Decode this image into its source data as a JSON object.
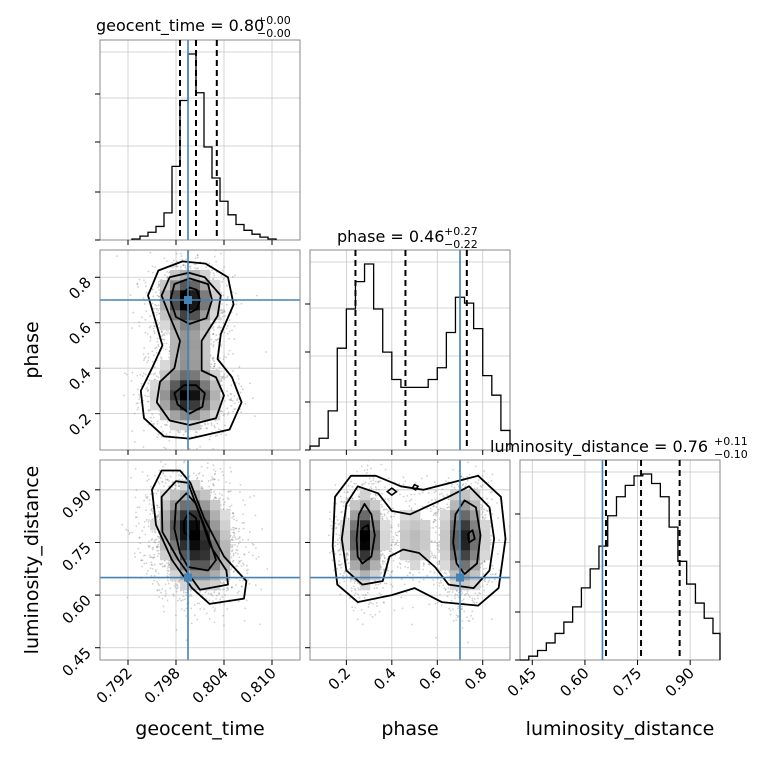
{
  "chart_data": {
    "type": "corner",
    "parameters": [
      "geocent_time",
      "phase",
      "luminosity_distance"
    ],
    "axis_labels": {
      "geocent_time": "geocent_time",
      "phase": "phase",
      "luminosity_distance": "luminosity_distance"
    },
    "titles": [
      {
        "param": "geocent_time",
        "label": "geocent_time",
        "value": "0.80",
        "plus": "+0.00",
        "minus": "−0.00"
      },
      {
        "param": "phase",
        "label": "phase",
        "value": "0.46",
        "plus": "+0.27",
        "minus": "−0.22"
      },
      {
        "param": "luminosity_distance",
        "label": "luminosity_distance",
        "value": "0.76",
        "plus": "+0.11",
        "minus": "−0.10"
      }
    ],
    "ranges": {
      "geocent_time": [
        0.7885,
        0.8135
      ],
      "phase": [
        0.04,
        0.92
      ],
      "luminosity_distance": [
        0.415,
        0.985
      ]
    },
    "ticks": {
      "geocent_time": [
        0.792,
        0.798,
        0.804,
        0.81
      ],
      "phase": [
        0.2,
        0.4,
        0.6,
        0.8
      ],
      "luminosity_distance": [
        0.45,
        0.6,
        0.75,
        0.9
      ]
    },
    "tick_labels": {
      "geocent_time": [
        "0.792",
        "0.798",
        "0.804",
        "0.810"
      ],
      "phase": [
        "0.2",
        "0.4",
        "0.6",
        "0.8"
      ],
      "luminosity_distance": [
        "0.45",
        "0.60",
        "0.75",
        "0.90"
      ]
    },
    "truths": {
      "geocent_time": 0.7995,
      "phase": 0.7,
      "luminosity_distance": 0.65
    },
    "quantiles": {
      "geocent_time": [
        0.7985,
        0.8005,
        0.8031
      ],
      "phase": [
        0.24,
        0.46,
        0.73
      ],
      "luminosity_distance": [
        0.66,
        0.76,
        0.87
      ]
    },
    "histograms": {
      "geocent_time": {
        "edges": [
          0.7925,
          0.7935,
          0.7945,
          0.7955,
          0.7965,
          0.7975,
          0.7985,
          0.7995,
          0.8005,
          0.8015,
          0.8025,
          0.8035,
          0.8045,
          0.8055,
          0.8065,
          0.8075,
          0.8085,
          0.8095,
          0.8105
        ],
        "counts": [
          0.005,
          0.02,
          0.04,
          0.07,
          0.14,
          0.38,
          0.72,
          0.96,
          0.76,
          0.48,
          0.32,
          0.2,
          0.13,
          0.08,
          0.05,
          0.03,
          0.015,
          0.005
        ]
      },
      "phase": {
        "edges": [
          0.04,
          0.08,
          0.12,
          0.16,
          0.2,
          0.24,
          0.28,
          0.32,
          0.36,
          0.4,
          0.44,
          0.48,
          0.52,
          0.56,
          0.6,
          0.64,
          0.68,
          0.72,
          0.76,
          0.8,
          0.84,
          0.88,
          0.92
        ],
        "counts": [
          0.02,
          0.06,
          0.2,
          0.52,
          0.72,
          0.86,
          0.95,
          0.72,
          0.5,
          0.36,
          0.32,
          0.32,
          0.32,
          0.36,
          0.42,
          0.6,
          0.78,
          0.75,
          0.62,
          0.38,
          0.28,
          0.1
        ]
      },
      "luminosity_distance": {
        "edges": [
          0.415,
          0.44,
          0.465,
          0.49,
          0.515,
          0.54,
          0.565,
          0.59,
          0.615,
          0.64,
          0.665,
          0.69,
          0.715,
          0.74,
          0.765,
          0.79,
          0.815,
          0.84,
          0.865,
          0.89,
          0.915,
          0.94,
          0.965,
          0.985
        ],
        "counts": [
          0.0,
          0.02,
          0.05,
          0.09,
          0.14,
          0.2,
          0.28,
          0.38,
          0.48,
          0.6,
          0.76,
          0.86,
          0.92,
          0.97,
          0.98,
          0.93,
          0.86,
          0.7,
          0.52,
          0.4,
          0.3,
          0.22,
          0.14
        ]
      }
    },
    "panels_2d": [
      {
        "x": "geocent_time",
        "y": "phase",
        "blobs": [
          {
            "cx": 0.7995,
            "cy": 0.7,
            "sx": 0.0017,
            "sy": 0.065,
            "w": 1.0
          },
          {
            "cx": 0.7995,
            "cy": 0.28,
            "sx": 0.002,
            "sy": 0.065,
            "w": 0.95
          },
          {
            "cx": 0.7995,
            "cy": 0.49,
            "sx": 0.0016,
            "sy": 0.09,
            "w": 0.35
          }
        ],
        "contours": [
          [
            [
              0.7998,
              0.645
            ],
            [
              0.8006,
              0.66
            ],
            [
              0.801,
              0.7
            ],
            [
              0.8006,
              0.745
            ],
            [
              0.7997,
              0.755
            ],
            [
              0.799,
              0.735
            ],
            [
              0.7987,
              0.7
            ],
            [
              0.799,
              0.665
            ]
          ],
          [
            [
              0.7997,
              0.595
            ],
            [
              0.8018,
              0.62
            ],
            [
              0.8025,
              0.7
            ],
            [
              0.802,
              0.77
            ],
            [
              0.7997,
              0.795
            ],
            [
              0.7978,
              0.77
            ],
            [
              0.7973,
              0.7
            ],
            [
              0.798,
              0.625
            ]
          ],
          [
            [
              0.7997,
              0.2
            ],
            [
              0.8013,
              0.23
            ],
            [
              0.8016,
              0.29
            ],
            [
              0.8005,
              0.325
            ],
            [
              0.799,
              0.325
            ],
            [
              0.7978,
              0.29
            ],
            [
              0.7982,
              0.24
            ]
          ],
          [
            [
              0.7997,
              0.15
            ],
            [
              0.803,
              0.18
            ],
            [
              0.804,
              0.28
            ],
            [
              0.803,
              0.36
            ],
            [
              0.8012,
              0.39
            ],
            [
              0.8012,
              0.52
            ],
            [
              0.8032,
              0.63
            ],
            [
              0.8036,
              0.72
            ],
            [
              0.8016,
              0.8
            ],
            [
              0.7996,
              0.82
            ],
            [
              0.7972,
              0.8
            ],
            [
              0.7962,
              0.72
            ],
            [
              0.7972,
              0.63
            ],
            [
              0.7985,
              0.52
            ],
            [
              0.7978,
              0.4
            ],
            [
              0.796,
              0.34
            ],
            [
              0.7956,
              0.25
            ],
            [
              0.7972,
              0.17
            ]
          ],
          [
            [
              0.7997,
              0.09
            ],
            [
              0.8047,
              0.13
            ],
            [
              0.8062,
              0.25
            ],
            [
              0.805,
              0.36
            ],
            [
              0.8032,
              0.44
            ],
            [
              0.8036,
              0.55
            ],
            [
              0.8052,
              0.68
            ],
            [
              0.8045,
              0.8
            ],
            [
              0.8017,
              0.86
            ],
            [
              0.7988,
              0.87
            ],
            [
              0.7958,
              0.83
            ],
            [
              0.7945,
              0.72
            ],
            [
              0.7955,
              0.6
            ],
            [
              0.7963,
              0.5
            ],
            [
              0.795,
              0.4
            ],
            [
              0.7936,
              0.3
            ],
            [
              0.794,
              0.18
            ],
            [
              0.7965,
              0.1
            ]
          ]
        ]
      },
      {
        "x": "geocent_time",
        "y": "luminosity_distance",
        "blobs": [
          {
            "cx": 0.7997,
            "cy": 0.8,
            "sx": 0.002,
            "sy": 0.055,
            "w": 1.0
          },
          {
            "cx": 0.8012,
            "cy": 0.71,
            "sx": 0.002,
            "sy": 0.05,
            "w": 0.7
          }
        ],
        "contours": [
          [
            [
              0.7997,
              0.765
            ],
            [
              0.8007,
              0.78
            ],
            [
              0.8005,
              0.82
            ],
            [
              0.7996,
              0.835
            ],
            [
              0.799,
              0.81
            ],
            [
              0.799,
              0.78
            ]
          ],
          [
            [
              0.7995,
              0.68
            ],
            [
              0.802,
              0.67
            ],
            [
              0.803,
              0.7
            ],
            [
              0.802,
              0.77
            ],
            [
              0.8005,
              0.86
            ],
            [
              0.7993,
              0.89
            ],
            [
              0.798,
              0.86
            ],
            [
              0.7978,
              0.79
            ],
            [
              0.7985,
              0.72
            ]
          ],
          [
            [
              0.801,
              0.615
            ],
            [
              0.8045,
              0.63
            ],
            [
              0.8043,
              0.67
            ],
            [
              0.8023,
              0.74
            ],
            [
              0.8008,
              0.84
            ],
            [
              0.7995,
              0.92
            ],
            [
              0.798,
              0.925
            ],
            [
              0.7962,
              0.88
            ],
            [
              0.7963,
              0.78
            ],
            [
              0.7983,
              0.7
            ]
          ],
          [
            [
              0.8022,
              0.575
            ],
            [
              0.8065,
              0.59
            ],
            [
              0.8068,
              0.64
            ],
            [
              0.804,
              0.71
            ],
            [
              0.8015,
              0.82
            ],
            [
              0.7998,
              0.92
            ],
            [
              0.7985,
              0.955
            ],
            [
              0.7962,
              0.955
            ],
            [
              0.795,
              0.9
            ],
            [
              0.7955,
              0.8
            ],
            [
              0.7975,
              0.7
            ],
            [
              0.8,
              0.62
            ]
          ]
        ]
      },
      {
        "x": "phase",
        "y": "luminosity_distance",
        "blobs": [
          {
            "cx": 0.28,
            "cy": 0.76,
            "sx": 0.04,
            "sy": 0.06,
            "w": 1.0
          },
          {
            "cx": 0.72,
            "cy": 0.76,
            "sx": 0.045,
            "sy": 0.07,
            "w": 0.85
          },
          {
            "cx": 0.5,
            "cy": 0.76,
            "sx": 0.06,
            "sy": 0.06,
            "w": 0.2
          }
        ],
        "contours": [
          [
            [
              0.275,
              0.75
            ],
            [
              0.3,
              0.77
            ],
            [
              0.295,
              0.8
            ],
            [
              0.27,
              0.79
            ]
          ],
          [
            [
              0.27,
              0.69
            ],
            [
              0.31,
              0.71
            ],
            [
              0.325,
              0.77
            ],
            [
              0.31,
              0.83
            ],
            [
              0.28,
              0.86
            ],
            [
              0.255,
              0.83
            ],
            [
              0.245,
              0.76
            ],
            [
              0.25,
              0.71
            ]
          ],
          [
            [
              0.74,
              0.75
            ],
            [
              0.765,
              0.76
            ],
            [
              0.755,
              0.785
            ],
            [
              0.735,
              0.775
            ]
          ],
          [
            [
              0.72,
              0.66
            ],
            [
              0.775,
              0.69
            ],
            [
              0.79,
              0.77
            ],
            [
              0.77,
              0.85
            ],
            [
              0.72,
              0.87
            ],
            [
              0.68,
              0.83
            ],
            [
              0.67,
              0.75
            ],
            [
              0.685,
              0.69
            ]
          ],
          [
            [
              0.27,
              0.63
            ],
            [
              0.36,
              0.64
            ],
            [
              0.39,
              0.71
            ],
            [
              0.45,
              0.73
            ],
            [
              0.52,
              0.72
            ],
            [
              0.59,
              0.68
            ],
            [
              0.65,
              0.63
            ],
            [
              0.76,
              0.62
            ],
            [
              0.83,
              0.67
            ],
            [
              0.85,
              0.76
            ],
            [
              0.83,
              0.85
            ],
            [
              0.74,
              0.91
            ],
            [
              0.65,
              0.88
            ],
            [
              0.58,
              0.86
            ],
            [
              0.48,
              0.83
            ],
            [
              0.4,
              0.84
            ],
            [
              0.34,
              0.89
            ],
            [
              0.25,
              0.91
            ],
            [
              0.2,
              0.86
            ],
            [
              0.18,
              0.76
            ],
            [
              0.2,
              0.67
            ]
          ],
          [
            [
              0.25,
              0.58
            ],
            [
              0.4,
              0.6
            ],
            [
              0.5,
              0.62
            ],
            [
              0.62,
              0.58
            ],
            [
              0.78,
              0.57
            ],
            [
              0.87,
              0.62
            ],
            [
              0.9,
              0.76
            ],
            [
              0.88,
              0.88
            ],
            [
              0.78,
              0.94
            ],
            [
              0.66,
              0.92
            ],
            [
              0.54,
              0.9
            ],
            [
              0.44,
              0.91
            ],
            [
              0.33,
              0.94
            ],
            [
              0.22,
              0.94
            ],
            [
              0.15,
              0.88
            ],
            [
              0.14,
              0.74
            ],
            [
              0.16,
              0.63
            ]
          ]
        ],
        "islands": [
          [
            [
              0.38,
              0.895
            ],
            [
              0.4,
              0.885
            ],
            [
              0.42,
              0.895
            ],
            [
              0.4,
              0.905
            ]
          ],
          [
            [
              0.49,
              0.905
            ],
            [
              0.505,
              0.9
            ],
            [
              0.515,
              0.91
            ],
            [
              0.5,
              0.915
            ]
          ]
        ]
      }
    ]
  }
}
